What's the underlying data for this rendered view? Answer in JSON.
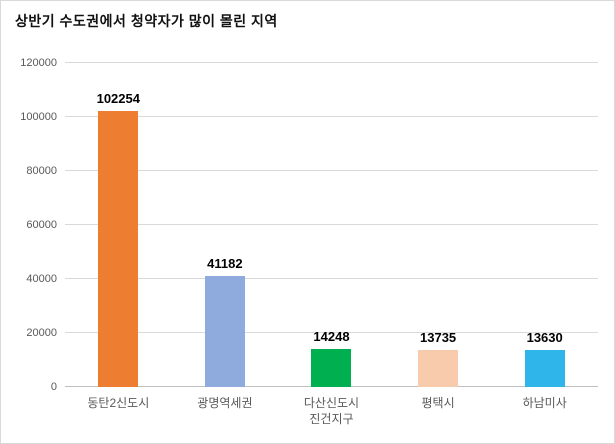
{
  "title": "상반기 수도권에서 청약자가 많이 몰린 지역",
  "chart_data": {
    "type": "bar",
    "title": "상반기 수도권에서 청약자가 많이 몰린 지역",
    "categories": [
      "동탄2신도시",
      "광명역세권",
      "다산신도시\n진건지구",
      "평택시",
      "하남미사"
    ],
    "values": [
      102254,
      41182,
      14248,
      13735,
      13630
    ],
    "value_labels": [
      "102254",
      "41182",
      "14248",
      "13735",
      "13630"
    ],
    "bar_colors": [
      "#ED7D31",
      "#8FAADC",
      "#00B050",
      "#F8CBAD",
      "#2FB5EA"
    ],
    "xlabel": "",
    "ylabel": "",
    "ylim": [
      0,
      120000
    ],
    "yticks": [
      0,
      20000,
      40000,
      60000,
      80000,
      100000,
      120000
    ],
    "grid": true,
    "legend": false,
    "colors": {
      "gridline": "#d9d9d9",
      "baseline": "#bfbfbf",
      "axis_text": "#595959",
      "title_text": "#111111",
      "data_label_text": "#000000"
    }
  }
}
